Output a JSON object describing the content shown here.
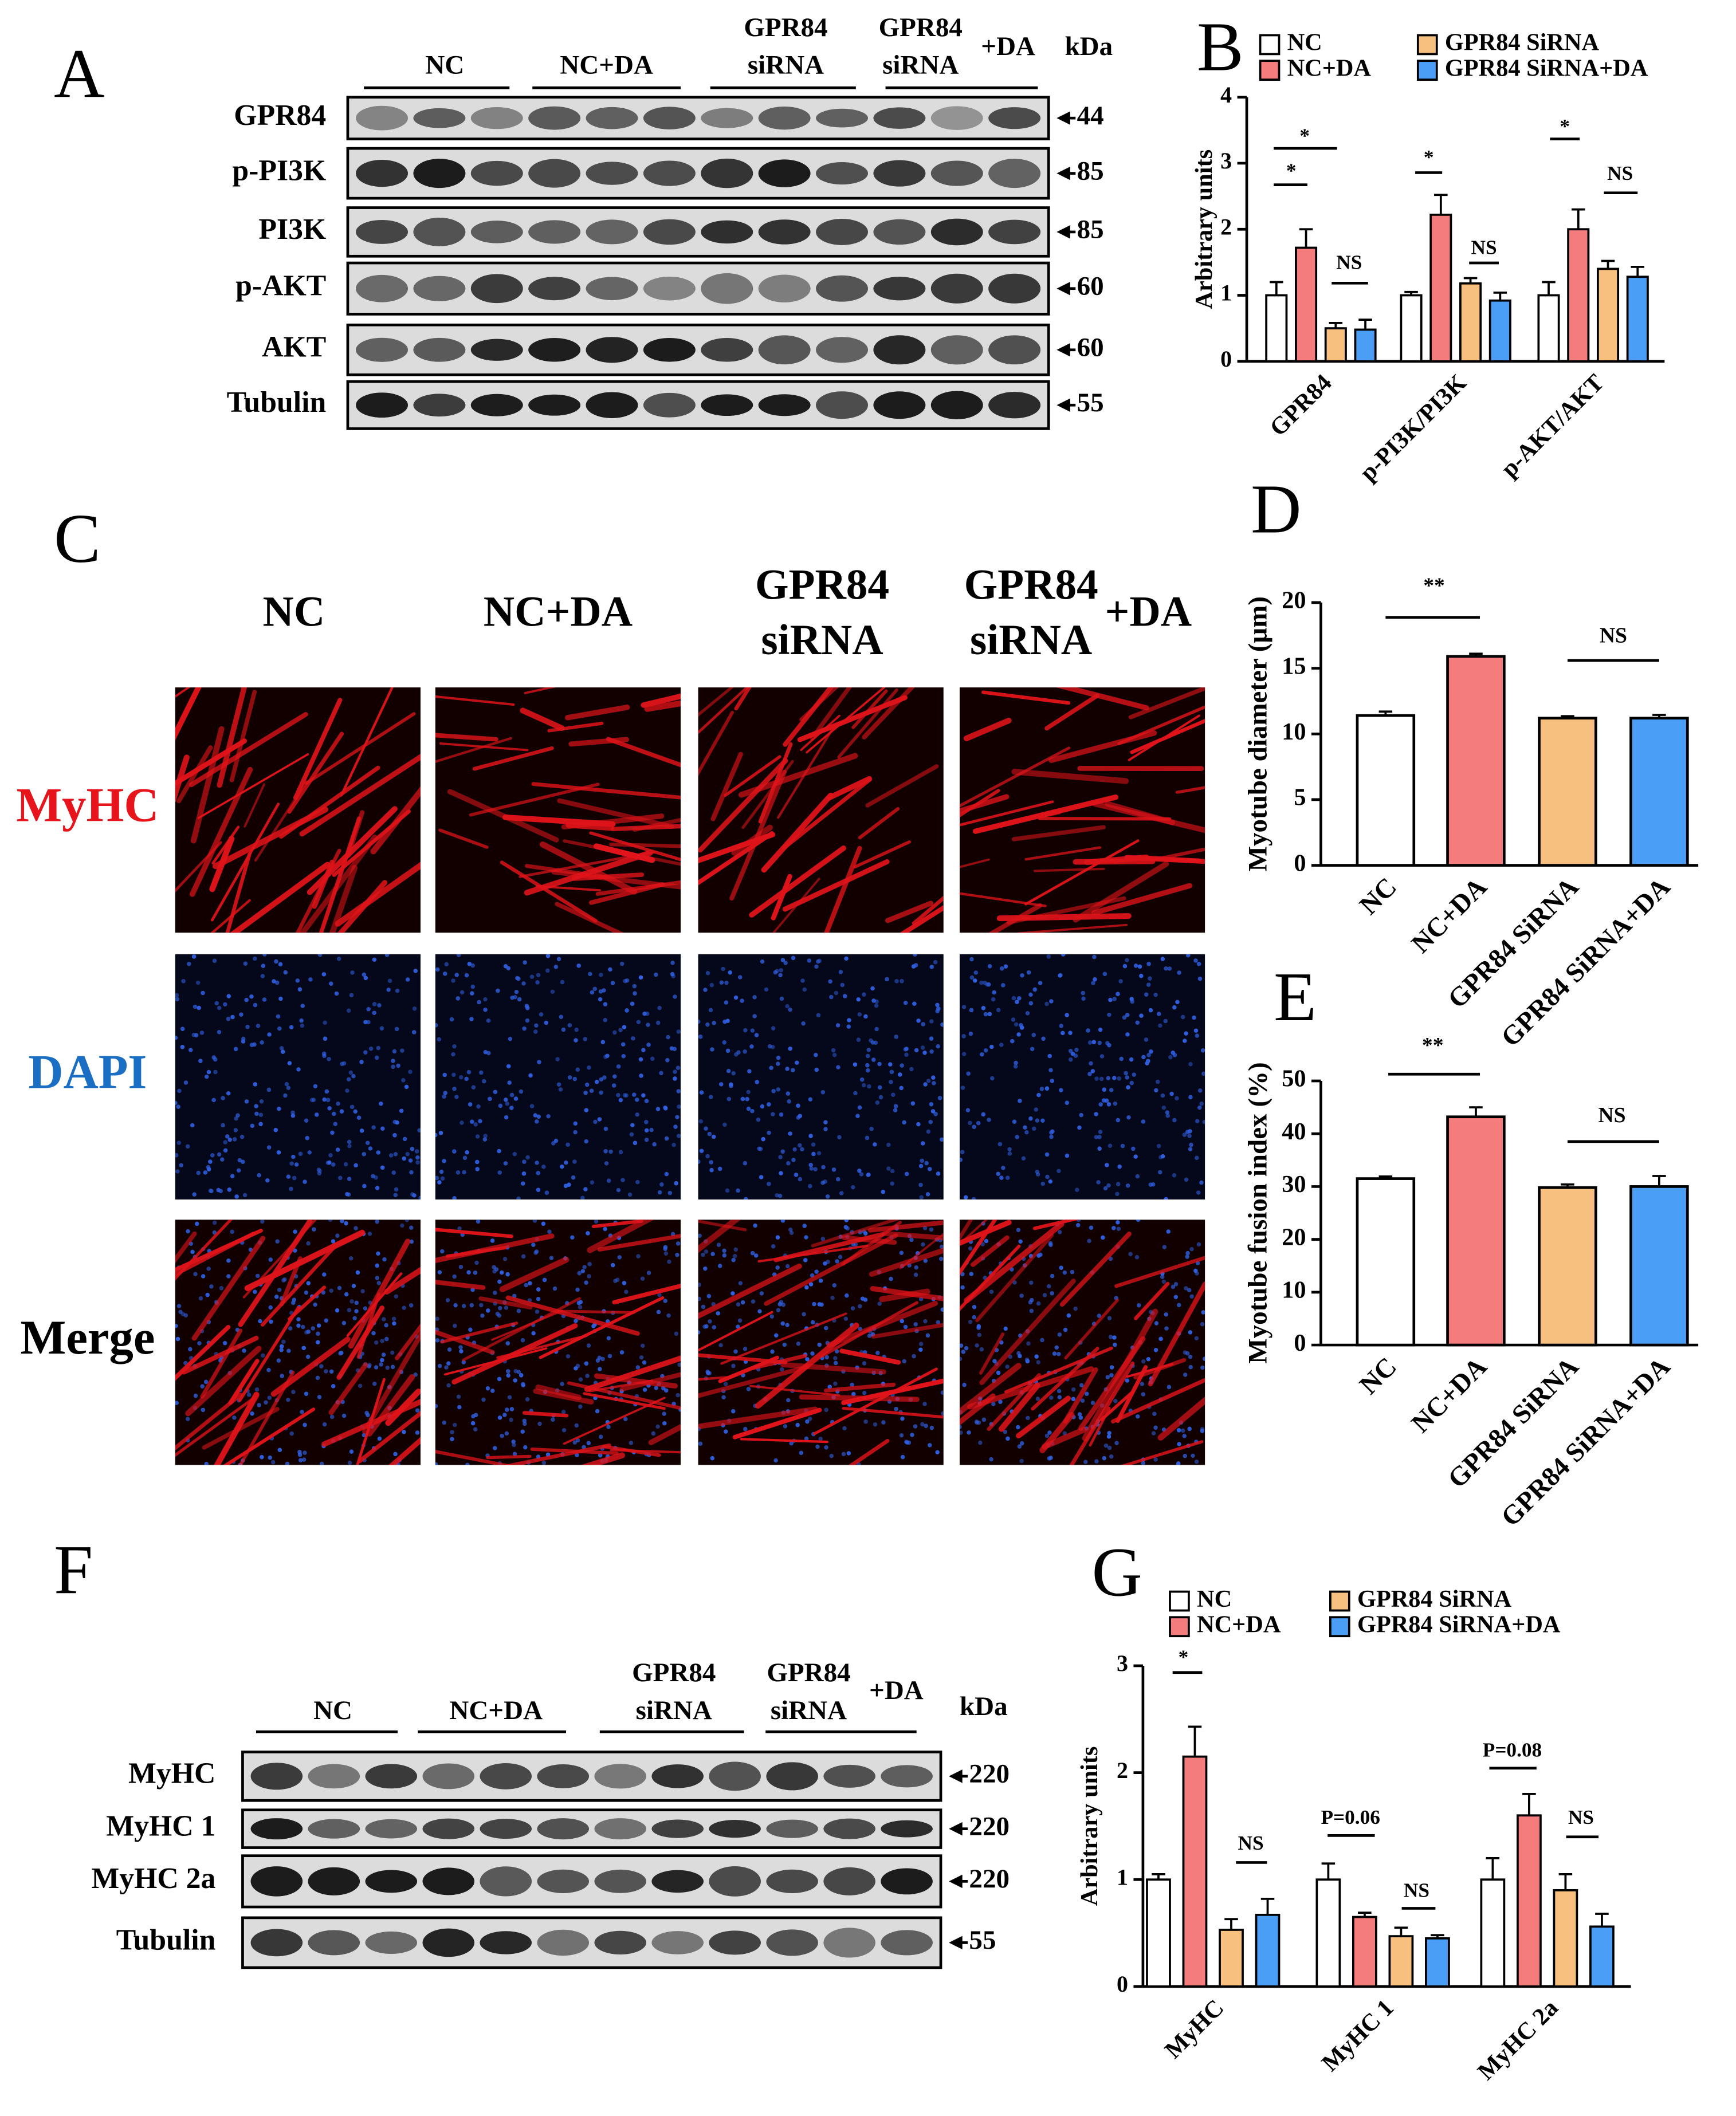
{
  "figure_labels": [
    "A",
    "B",
    "C",
    "D",
    "E",
    "F",
    "G"
  ],
  "blot_a": {
    "groups": [
      [
        "NC"
      ],
      [
        "NC+DA"
      ],
      [
        "GPR84",
        "siRNA"
      ],
      [
        "GPR84",
        "siRNA"
      ]
    ],
    "group_suffix": "+DA",
    "unit": "kDa",
    "rows": [
      {
        "label": "GPR84",
        "kda": 44
      },
      {
        "label": "p-PI3K",
        "kda": 85
      },
      {
        "label": "PI3K",
        "kda": 85
      },
      {
        "label": "p-AKT",
        "kda": 60
      },
      {
        "label": "AKT",
        "kda": 60
      },
      {
        "label": "Tubulin",
        "kda": 55
      }
    ]
  },
  "images": {
    "groups": [
      [
        "NC"
      ],
      [
        "NC+DA"
      ],
      [
        "GPR84",
        "siRNA"
      ],
      [
        "GPR84",
        "siRNA"
      ]
    ],
    "group_suffix": "+DA",
    "rows": [
      {
        "label": "MyHC",
        "color": "#e8141b"
      },
      {
        "label": "DAPI",
        "color": "#1a6fc4"
      },
      {
        "label": "Merge",
        "color": "#000000"
      }
    ]
  },
  "blot_f": {
    "groups": [
      [
        "NC"
      ],
      [
        "NC+DA"
      ],
      [
        "GPR84",
        "siRNA"
      ],
      [
        "GPR84",
        "siRNA"
      ]
    ],
    "group_suffix": "+DA",
    "unit": "kDa",
    "rows": [
      {
        "label": "MyHC",
        "kda": 220
      },
      {
        "label": "MyHC 1",
        "kda": 220
      },
      {
        "label": "MyHC 2a",
        "kda": 220
      },
      {
        "label": "Tubulin",
        "kda": 55
      }
    ]
  },
  "chart_data": [
    {
      "type": "bar",
      "y_label": "Arbitrary units",
      "categories": [
        "GPR84",
        "p-PI3K/PI3K",
        "p-AKT/AKT"
      ],
      "series": [
        {
          "name": "NC",
          "color": "#ffffff",
          "values": [
            1.0,
            1.0,
            1.0
          ],
          "errors": [
            0.2,
            0.05,
            0.2
          ]
        },
        {
          "name": "NC+DA",
          "color": "#f47c7c",
          "values": [
            1.72,
            2.22,
            2.0
          ],
          "errors": [
            0.28,
            0.3,
            0.3
          ]
        },
        {
          "name": "GPR84 SiRNA",
          "color": "#f8c07e",
          "values": [
            0.5,
            1.18,
            1.4
          ],
          "errors": [
            0.08,
            0.08,
            0.12
          ]
        },
        {
          "name": "GPR84 SiRNA+DA",
          "color": "#4a9ef5",
          "values": [
            0.48,
            0.92,
            1.28
          ],
          "errors": [
            0.15,
            0.12,
            0.15
          ]
        }
      ],
      "ylim": [
        0,
        4
      ],
      "yticks": [
        0,
        1,
        2,
        3,
        4
      ],
      "annotations": [
        "*",
        "*",
        "NS",
        "*",
        "NS",
        "*",
        "NS"
      ]
    },
    {
      "type": "bar",
      "y_label": "Myotube diameter (μm)",
      "categories": [
        "NC",
        "NC+DA",
        "GPR84 SiRNA",
        "GPR84 SiRNA+DA"
      ],
      "colors": [
        "#ffffff",
        "#f47c7c",
        "#f8c07e",
        "#4a9ef5"
      ],
      "values": [
        11.4,
        15.9,
        11.2,
        11.2
      ],
      "errors": [
        0.3,
        0.2,
        0.15,
        0.25
      ],
      "ylim": [
        0,
        20
      ],
      "yticks": [
        0,
        5,
        10,
        15,
        20
      ],
      "annotations": [
        "**",
        "NS"
      ]
    },
    {
      "type": "bar",
      "y_label": "Myotube fusion index (%)",
      "categories": [
        "NC",
        "NC+DA",
        "GPR84 SiRNA",
        "GPR84 SiRNA+DA"
      ],
      "colors": [
        "#ffffff",
        "#f47c7c",
        "#f8c07e",
        "#4a9ef5"
      ],
      "values": [
        31.5,
        43.2,
        29.8,
        30.0
      ],
      "errors": [
        0.4,
        1.8,
        0.6,
        2.0
      ],
      "ylim": [
        0,
        50
      ],
      "yticks": [
        0,
        10,
        20,
        30,
        40,
        50
      ],
      "annotations": [
        "**",
        "NS"
      ]
    },
    {
      "type": "bar",
      "y_label": "Arbitrary units",
      "categories": [
        "MyHC",
        "MyHC 1",
        "MyHC 2a"
      ],
      "series": [
        {
          "name": "NC",
          "color": "#ffffff",
          "values": [
            1.0,
            1.0,
            1.0
          ],
          "errors": [
            0.05,
            0.15,
            0.2
          ]
        },
        {
          "name": "NC+DA",
          "color": "#f47c7c",
          "values": [
            2.15,
            0.65,
            1.6
          ],
          "errors": [
            0.28,
            0.04,
            0.2
          ]
        },
        {
          "name": "GPR84 SiRNA",
          "color": "#f8c07e",
          "values": [
            0.53,
            0.47,
            0.9
          ],
          "errors": [
            0.1,
            0.08,
            0.15
          ]
        },
        {
          "name": "GPR84 SiRNA+DA",
          "color": "#4a9ef5",
          "values": [
            0.67,
            0.45,
            0.56
          ],
          "errors": [
            0.15,
            0.03,
            0.12
          ]
        }
      ],
      "ylim": [
        0,
        3
      ],
      "yticks": [
        0,
        1,
        2,
        3
      ],
      "annotations": [
        "*",
        "NS",
        "P=0.06",
        "NS",
        "P=0.08",
        "NS"
      ]
    }
  ]
}
